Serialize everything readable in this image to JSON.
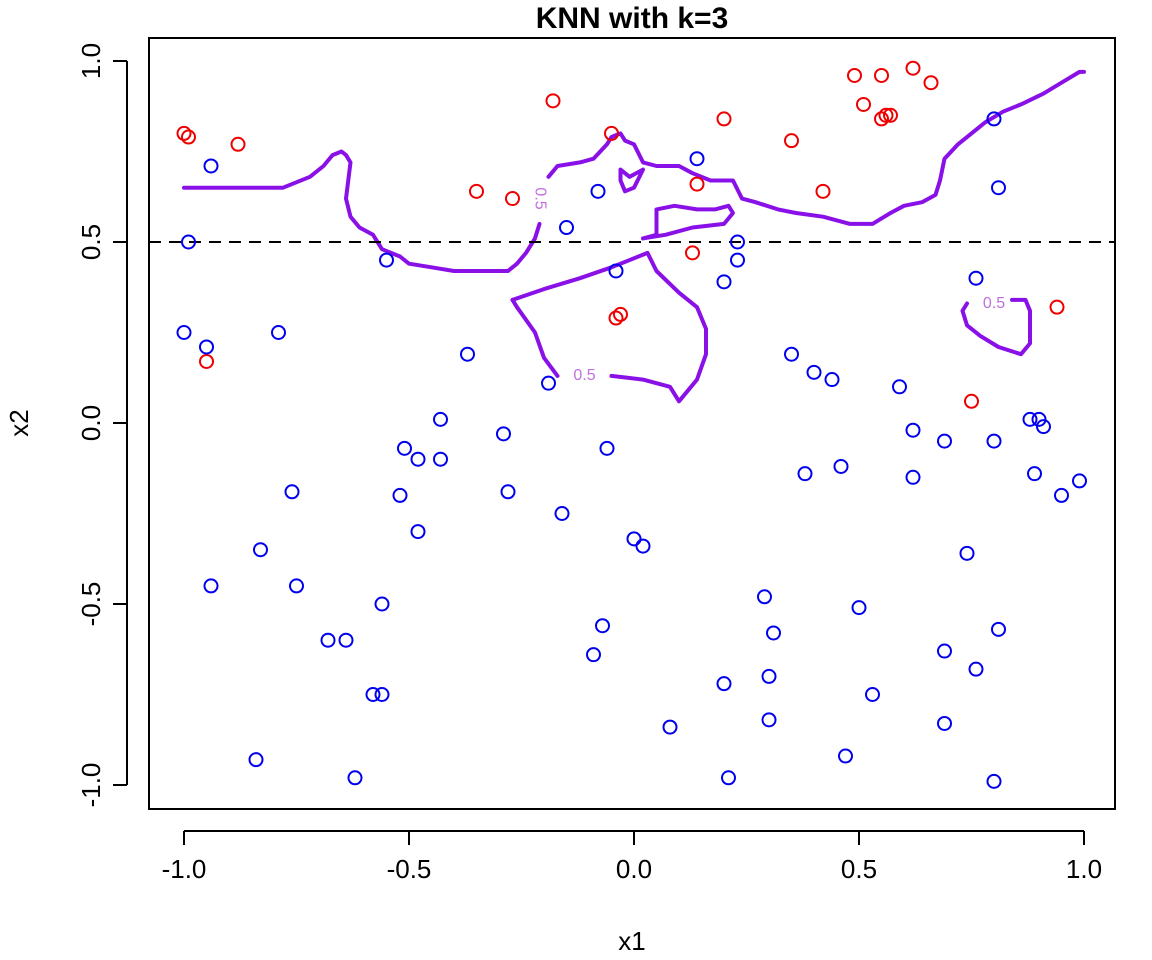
{
  "chart_data": {
    "type": "scatter",
    "title": "KNN with k=3",
    "xlabel": "x1",
    "ylabel": "x2",
    "xlim": [
      -1.07,
      1.07
    ],
    "ylim": [
      -1.07,
      1.07
    ],
    "x_ticks": [
      -1.0,
      -0.5,
      0.0,
      0.5,
      1.0
    ],
    "y_ticks": [
      -1.0,
      -0.5,
      0.0,
      0.5,
      1.0
    ],
    "x_tick_labels": [
      "-1.0",
      "-0.5",
      "0.0",
      "0.5",
      "1.0"
    ],
    "y_tick_labels": [
      "-1.0",
      "-0.5",
      "0.0",
      "0.5",
      "1.0"
    ],
    "grid": false,
    "reference_line": {
      "y": 0.5,
      "style": "dashed",
      "color": "#000000"
    },
    "colors": {
      "class_red": "#ee0000",
      "class_blue": "#0000ee",
      "boundary": "#8a10e8",
      "contour_label": "#c070e0"
    },
    "series": [
      {
        "color": "#ee0000",
        "points": [
          [
            -1.0,
            0.8
          ],
          [
            -0.99,
            0.79
          ],
          [
            -0.88,
            0.77
          ],
          [
            -0.95,
            0.17
          ],
          [
            -0.35,
            0.64
          ],
          [
            -0.27,
            0.62
          ],
          [
            -0.18,
            0.89
          ],
          [
            -0.05,
            0.8
          ],
          [
            0.2,
            0.84
          ],
          [
            0.35,
            0.78
          ],
          [
            0.42,
            0.64
          ],
          [
            0.14,
            0.66
          ],
          [
            0.13,
            0.47
          ],
          [
            -0.03,
            0.3
          ],
          [
            -0.04,
            0.29
          ],
          [
            0.49,
            0.96
          ],
          [
            0.55,
            0.96
          ],
          [
            0.62,
            0.98
          ],
          [
            0.66,
            0.94
          ],
          [
            0.51,
            0.88
          ],
          [
            0.55,
            0.84
          ],
          [
            0.56,
            0.85
          ],
          [
            0.57,
            0.85
          ],
          [
            0.75,
            0.06
          ],
          [
            0.94,
            0.32
          ]
        ]
      },
      {
        "color": "#0000ee",
        "points": [
          [
            -0.94,
            0.71
          ],
          [
            -0.99,
            0.5
          ],
          [
            -1.0,
            0.25
          ],
          [
            -0.95,
            0.21
          ],
          [
            -0.79,
            0.25
          ],
          [
            -0.55,
            0.45
          ],
          [
            -0.37,
            0.19
          ],
          [
            -0.15,
            0.54
          ],
          [
            -0.08,
            0.64
          ],
          [
            -0.04,
            0.42
          ],
          [
            0.14,
            0.73
          ],
          [
            0.23,
            0.45
          ],
          [
            0.23,
            0.5
          ],
          [
            0.2,
            0.39
          ],
          [
            0.8,
            0.84
          ],
          [
            0.81,
            0.65
          ],
          [
            0.76,
            0.4
          ],
          [
            -0.19,
            0.11
          ],
          [
            0.35,
            0.19
          ],
          [
            0.4,
            0.14
          ],
          [
            0.44,
            0.12
          ],
          [
            0.59,
            0.1
          ],
          [
            -0.43,
            0.01
          ],
          [
            -0.29,
            -0.03
          ],
          [
            -0.51,
            -0.07
          ],
          [
            -0.48,
            -0.1
          ],
          [
            -0.43,
            -0.1
          ],
          [
            -0.06,
            -0.07
          ],
          [
            0.62,
            -0.02
          ],
          [
            0.69,
            -0.05
          ],
          [
            0.8,
            -0.05
          ],
          [
            0.88,
            0.01
          ],
          [
            0.9,
            0.01
          ],
          [
            0.91,
            -0.01
          ],
          [
            0.38,
            -0.14
          ],
          [
            0.46,
            -0.12
          ],
          [
            0.62,
            -0.15
          ],
          [
            0.89,
            -0.14
          ],
          [
            0.95,
            -0.2
          ],
          [
            0.99,
            -0.16
          ],
          [
            -0.76,
            -0.19
          ],
          [
            -0.52,
            -0.2
          ],
          [
            -0.28,
            -0.19
          ],
          [
            -0.16,
            -0.25
          ],
          [
            -0.48,
            -0.3
          ],
          [
            0.0,
            -0.32
          ],
          [
            0.02,
            -0.34
          ],
          [
            -0.83,
            -0.35
          ],
          [
            -0.94,
            -0.45
          ],
          [
            -0.75,
            -0.45
          ],
          [
            -0.56,
            -0.5
          ],
          [
            0.74,
            -0.36
          ],
          [
            0.29,
            -0.48
          ],
          [
            0.5,
            -0.51
          ],
          [
            -0.07,
            -0.56
          ],
          [
            -0.68,
            -0.6
          ],
          [
            -0.64,
            -0.6
          ],
          [
            -0.09,
            -0.64
          ],
          [
            0.31,
            -0.58
          ],
          [
            0.81,
            -0.57
          ],
          [
            0.69,
            -0.63
          ],
          [
            0.76,
            -0.68
          ],
          [
            -0.58,
            -0.75
          ],
          [
            -0.56,
            -0.75
          ],
          [
            0.2,
            -0.72
          ],
          [
            0.3,
            -0.7
          ],
          [
            0.53,
            -0.75
          ],
          [
            0.08,
            -0.84
          ],
          [
            0.3,
            -0.82
          ],
          [
            0.69,
            -0.83
          ],
          [
            0.47,
            -0.92
          ],
          [
            -0.84,
            -0.93
          ],
          [
            -0.62,
            -0.98
          ],
          [
            0.21,
            -0.98
          ],
          [
            0.8,
            -0.99
          ]
        ]
      }
    ],
    "decision_boundary": {
      "level": 0.5,
      "label": "0.5",
      "paths": [
        [
          [
            -1.0,
            0.65
          ],
          [
            -0.95,
            0.65
          ],
          [
            -0.85,
            0.65
          ],
          [
            -0.78,
            0.65
          ],
          [
            -0.72,
            0.68
          ],
          [
            -0.69,
            0.71
          ],
          [
            -0.67,
            0.74
          ],
          [
            -0.65,
            0.75
          ],
          [
            -0.64,
            0.74
          ],
          [
            -0.63,
            0.72
          ],
          [
            -0.64,
            0.62
          ],
          [
            -0.63,
            0.57
          ],
          [
            -0.61,
            0.54
          ],
          [
            -0.58,
            0.52
          ],
          [
            -0.56,
            0.48
          ],
          [
            -0.52,
            0.46
          ],
          [
            -0.5,
            0.44
          ],
          [
            -0.45,
            0.43
          ],
          [
            -0.4,
            0.42
          ],
          [
            -0.34,
            0.42
          ],
          [
            -0.32,
            0.42
          ],
          [
            -0.28,
            0.42
          ],
          [
            -0.26,
            0.44
          ],
          [
            -0.24,
            0.47
          ],
          [
            -0.22,
            0.51
          ],
          [
            -0.21,
            0.55
          ]
        ],
        [
          [
            -0.19,
            0.68
          ],
          [
            -0.17,
            0.71
          ],
          [
            -0.12,
            0.72
          ],
          [
            -0.09,
            0.73
          ],
          [
            -0.06,
            0.77
          ],
          [
            -0.05,
            0.79
          ],
          [
            -0.03,
            0.8
          ],
          [
            -0.02,
            0.78
          ],
          [
            0.0,
            0.77
          ],
          [
            0.02,
            0.72
          ],
          [
            0.05,
            0.71
          ],
          [
            0.1,
            0.71
          ],
          [
            0.13,
            0.69
          ],
          [
            0.17,
            0.67
          ],
          [
            0.22,
            0.67
          ],
          [
            0.24,
            0.62
          ],
          [
            0.27,
            0.61
          ],
          [
            0.32,
            0.59
          ],
          [
            0.36,
            0.58
          ],
          [
            0.42,
            0.57
          ],
          [
            0.48,
            0.55
          ],
          [
            0.53,
            0.55
          ],
          [
            0.57,
            0.58
          ],
          [
            0.6,
            0.6
          ],
          [
            0.64,
            0.61
          ],
          [
            0.67,
            0.63
          ],
          [
            0.68,
            0.67
          ],
          [
            0.69,
            0.73
          ],
          [
            0.72,
            0.77
          ],
          [
            0.75,
            0.8
          ],
          [
            0.78,
            0.83
          ],
          [
            0.82,
            0.86
          ],
          [
            0.86,
            0.88
          ],
          [
            0.91,
            0.91
          ],
          [
            0.95,
            0.94
          ],
          [
            0.99,
            0.97
          ],
          [
            1.0,
            0.97
          ]
        ],
        [
          [
            -0.03,
            0.7
          ],
          [
            -0.01,
            0.68
          ],
          [
            0.02,
            0.7
          ],
          [
            0.0,
            0.65
          ],
          [
            -0.02,
            0.64
          ],
          [
            -0.03,
            0.67
          ],
          [
            -0.03,
            0.7
          ]
        ],
        [
          [
            0.02,
            0.51
          ],
          [
            0.05,
            0.52
          ],
          [
            0.05,
            0.59
          ],
          [
            0.09,
            0.6
          ],
          [
            0.14,
            0.59
          ],
          [
            0.18,
            0.59
          ],
          [
            0.21,
            0.6
          ],
          [
            0.22,
            0.58
          ],
          [
            0.2,
            0.55
          ],
          [
            0.13,
            0.54
          ],
          [
            0.07,
            0.52
          ],
          [
            0.02,
            0.51
          ]
        ],
        [
          [
            -0.27,
            0.34
          ],
          [
            -0.2,
            0.37
          ],
          [
            -0.12,
            0.4
          ],
          [
            -0.05,
            0.43
          ],
          [
            0.03,
            0.47
          ],
          [
            0.05,
            0.42
          ],
          [
            0.1,
            0.36
          ],
          [
            0.14,
            0.32
          ],
          [
            0.16,
            0.26
          ],
          [
            0.16,
            0.19
          ],
          [
            0.14,
            0.12
          ],
          [
            0.1,
            0.06
          ],
          [
            0.08,
            0.1
          ],
          [
            0.02,
            0.12
          ],
          [
            -0.05,
            0.13
          ]
        ],
        [
          [
            -0.17,
            0.13
          ],
          [
            -0.2,
            0.18
          ],
          [
            -0.22,
            0.25
          ],
          [
            -0.26,
            0.32
          ],
          [
            -0.27,
            0.34
          ]
        ],
        [
          [
            0.74,
            0.33
          ],
          [
            0.73,
            0.31
          ],
          [
            0.74,
            0.27
          ],
          [
            0.77,
            0.24
          ],
          [
            0.81,
            0.21
          ],
          [
            0.86,
            0.19
          ],
          [
            0.88,
            0.22
          ],
          [
            0.88,
            0.31
          ],
          [
            0.87,
            0.34
          ],
          [
            0.84,
            0.34
          ]
        ]
      ],
      "labels": [
        {
          "x": -0.21,
          "y": 0.62,
          "rotate": 90
        },
        {
          "x": -0.11,
          "y": 0.13,
          "rotate": 0
        },
        {
          "x": 0.8,
          "y": 0.33,
          "rotate": 0
        }
      ]
    }
  }
}
